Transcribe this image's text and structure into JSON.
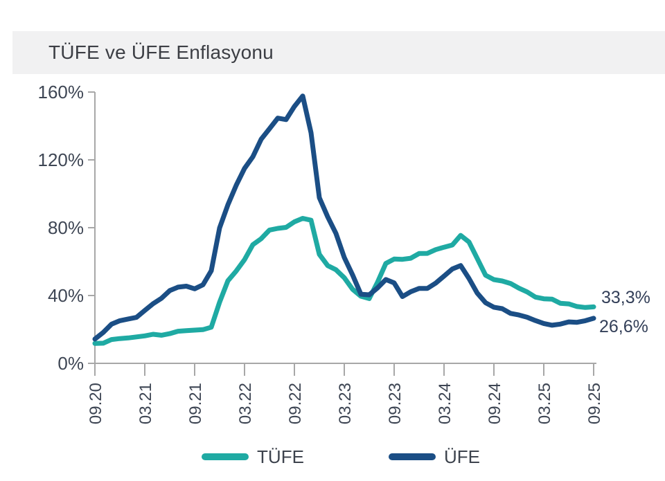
{
  "title": "TÜFE ve ÜFE Enflasyonu",
  "end_labels": {
    "tufe": "33,3%",
    "ufe": "26,6%"
  },
  "colors": {
    "tufe_line": "#1FAAA3",
    "ufe_line": "#1B4E85",
    "axis": "#A7A7A7",
    "title_band": "#F1F1F2",
    "tick_text": "#3E4654",
    "end_label_text": "#333F58"
  },
  "chart_data": {
    "type": "line",
    "title": "TÜFE ve ÜFE Enflasyonu",
    "xlabel": "",
    "ylabel": "",
    "ylim": [
      0,
      160
    ],
    "grid": false,
    "legend_position": "bottom",
    "y_tick_labels": [
      "0%",
      "40%",
      "80%",
      "120%",
      "160%"
    ],
    "x_tick_labels": [
      "09.20",
      "03.21",
      "09.21",
      "03.22",
      "09.22",
      "03.23",
      "09.23",
      "03.24",
      "09.24",
      "03.25",
      "09.25"
    ],
    "x_tick_every_n_months": 6,
    "x": [
      "09.20",
      "10.20",
      "11.20",
      "12.20",
      "01.21",
      "02.21",
      "03.21",
      "04.21",
      "05.21",
      "06.21",
      "07.21",
      "08.21",
      "09.21",
      "10.21",
      "11.21",
      "12.21",
      "01.22",
      "02.22",
      "03.22",
      "04.22",
      "05.22",
      "06.22",
      "07.22",
      "08.22",
      "09.22",
      "10.22",
      "11.22",
      "12.22",
      "01.23",
      "02.23",
      "03.23",
      "04.23",
      "05.23",
      "06.23",
      "07.23",
      "08.23",
      "09.23",
      "10.23",
      "11.23",
      "12.23",
      "01.24",
      "02.24",
      "03.24",
      "04.24",
      "05.24",
      "06.24",
      "07.24",
      "08.24",
      "09.24",
      "10.24",
      "11.24",
      "12.24",
      "01.25",
      "02.25",
      "03.25",
      "04.25",
      "05.25",
      "06.25",
      "07.25",
      "08.25",
      "09.25"
    ],
    "series": [
      {
        "name": "TÜFE",
        "color": "#1FAAA3",
        "values": [
          11.75,
          11.89,
          14.03,
          14.6,
          14.97,
          15.61,
          16.19,
          17.14,
          16.59,
          17.53,
          18.95,
          19.25,
          19.58,
          19.89,
          21.31,
          36.08,
          48.69,
          54.44,
          61.14,
          69.97,
          73.5,
          78.62,
          79.6,
          80.21,
          83.45,
          85.51,
          84.39,
          64.27,
          57.68,
          55.18,
          50.51,
          43.68,
          39.59,
          38.21,
          47.83,
          58.94,
          61.53,
          61.36,
          61.98,
          64.77,
          64.86,
          67.07,
          68.5,
          69.8,
          75.45,
          71.6,
          61.78,
          51.97,
          49.38,
          48.58,
          47.09,
          44.38,
          42.12,
          39.05,
          38.1,
          37.86,
          35.41,
          35.05,
          33.52,
          32.95,
          33.29
        ]
      },
      {
        "name": "ÜFE",
        "color": "#1B4E85",
        "values": [
          14.33,
          18.2,
          23.11,
          25.15,
          26.16,
          27.09,
          31.2,
          35.17,
          38.33,
          42.89,
          44.92,
          45.52,
          43.96,
          46.31,
          54.62,
          79.89,
          93.53,
          105.01,
          114.97,
          121.82,
          132.16,
          138.31,
          144.61,
          143.75,
          151.5,
          157.69,
          136.02,
          97.72,
          86.46,
          76.61,
          62.45,
          52.11,
          40.76,
          40.42,
          44.5,
          49.41,
          47.44,
          39.39,
          42.25,
          44.22,
          44.2,
          47.29,
          51.47,
          55.66,
          57.68,
          50.09,
          41.37,
          35.75,
          33.09,
          32.24,
          29.47,
          28.52,
          27.2,
          25.21,
          23.5,
          22.5,
          23.13,
          24.45,
          24.19,
          25.16,
          26.59
        ]
      }
    ]
  }
}
